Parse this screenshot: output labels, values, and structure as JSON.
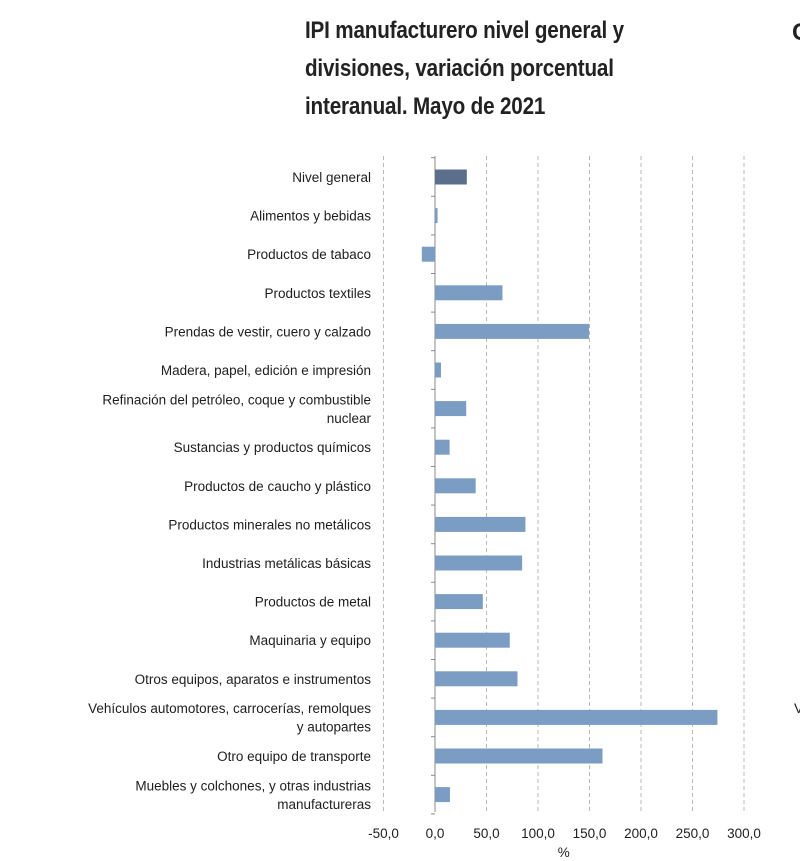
{
  "chart_data": {
    "type": "bar",
    "orientation": "horizontal",
    "title": "IPI manufacturero nivel general y divisiones, variación porcentual interanual. Mayo de 2021",
    "title_lines": [
      "IPI manufacturero nivel general y",
      "divisiones, variación porcentual",
      "interanual. Mayo de 2021"
    ],
    "xlabel": "%",
    "ylabel": "",
    "xlim": [
      -50,
      300
    ],
    "xticks": [
      -50,
      0,
      50,
      100,
      150,
      200,
      250,
      300
    ],
    "xtick_labels": [
      "-50,0",
      "0,0",
      "50,0",
      "100,0",
      "150,0",
      "200,0",
      "250,0",
      "300,0"
    ],
    "grid": "vertical dashed",
    "categories": [
      [
        "Nivel general"
      ],
      [
        "Alimentos y bebidas"
      ],
      [
        "Productos de tabaco"
      ],
      [
        "Productos textiles"
      ],
      [
        "Prendas de vestir, cuero y calzado"
      ],
      [
        "Madera, papel, edición e impresión"
      ],
      [
        "Refinación del petróleo, coque y combustible",
        "nuclear"
      ],
      [
        "Sustancias y productos químicos"
      ],
      [
        "Productos de caucho y plástico"
      ],
      [
        "Productos minerales no metálicos"
      ],
      [
        "Industrias metálicas básicas"
      ],
      [
        "Productos de metal"
      ],
      [
        "Maquinaria y equipo"
      ],
      [
        "Otros equipos, aparatos e instrumentos"
      ],
      [
        "Vehículos automotores, carrocerías, remolques",
        "y autopartes"
      ],
      [
        "Otro equipo de transporte"
      ],
      [
        "Muebles y colchones, y otras industrias",
        "manufactureras"
      ]
    ],
    "values": [
      30.9,
      2.5,
      -12.8,
      65.5,
      149.5,
      5.8,
      30.3,
      14.2,
      39.5,
      87.8,
      84.6,
      46.4,
      72.6,
      80.1,
      274.2,
      162.6,
      14.5
    ],
    "bar_colors": [
      "#5b6f8d",
      "#7b9dc4",
      "#7b9dc4",
      "#7b9dc4",
      "#7b9dc4",
      "#7b9dc4",
      "#7b9dc4",
      "#7b9dc4",
      "#7b9dc4",
      "#7b9dc4",
      "#7b9dc4",
      "#7b9dc4",
      "#7b9dc4",
      "#7b9dc4",
      "#7b9dc4",
      "#7b9dc4",
      "#7b9dc4"
    ]
  },
  "colors": {
    "highlight_bar": "#5b6f8d",
    "bar": "#7b9dc4",
    "gridline": "#b9b9b9",
    "axis": "#8a8a8a",
    "text": "#1e1e1e"
  },
  "edge_glyphs": {
    "top_right": "C",
    "right": "V"
  }
}
